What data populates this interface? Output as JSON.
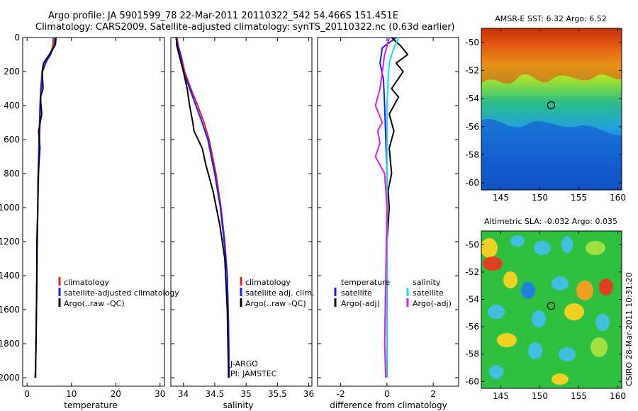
{
  "figure": {
    "title_line1": "Argo profile: JA 5901599_78 22-Mar-2011 20110322_542 54.466S 151.451E",
    "title_line2": "Climatology: CARS2009. Satellite-adjusted climatology: synTS_20110322.nc (0.63d earlier)",
    "side_stamp": "CSIRO 28-Mar-2011 10:31:20"
  },
  "colors": {
    "climatology": "#e32222",
    "satellite": "#1a1aff",
    "argo": "#000000",
    "salinity_satellite": "#19e0e6",
    "salinity_argo": "#e619e6"
  },
  "chart_data": [
    {
      "type": "line",
      "id": "temperature",
      "xlabel": "temperature",
      "ylabel": "",
      "xlim": [
        -1,
        31
      ],
      "ylim": [
        2050,
        0
      ],
      "xticks": [
        0,
        10,
        20,
        30
      ],
      "yticks": [
        0,
        200,
        400,
        600,
        800,
        1000,
        1200,
        1400,
        1600,
        1800,
        2000
      ],
      "legend": [
        "climatology",
        "satellite-adjusted climatology",
        "Argo(..raw -QC)"
      ],
      "series": [
        {
          "name": "climatology",
          "color": "#e32222",
          "x": [
            5.9,
            5.8,
            5.2,
            4.2,
            3.5,
            3.2,
            3.0,
            2.9,
            2.8,
            2.6,
            2.4,
            2.3,
            2.2,
            2.1,
            2.0,
            1.9
          ],
          "y": [
            0,
            50,
            100,
            150,
            200,
            300,
            400,
            500,
            600,
            800,
            1000,
            1200,
            1400,
            1600,
            1800,
            2000
          ]
        },
        {
          "name": "satellite-adjusted climatology",
          "color": "#1a1aff",
          "x": [
            6.3,
            6.1,
            5.3,
            4.1,
            3.4,
            3.1,
            2.9,
            2.8,
            2.7,
            2.5,
            2.4,
            2.3,
            2.2,
            2.1,
            2.0,
            1.9
          ],
          "y": [
            0,
            50,
            100,
            150,
            200,
            300,
            400,
            500,
            600,
            800,
            1000,
            1200,
            1400,
            1600,
            1800,
            2000
          ]
        },
        {
          "name": "Argo(..raw -QC)",
          "color": "#000000",
          "x": [
            6.5,
            6.4,
            5.0,
            3.7,
            3.4,
            3.6,
            3.0,
            3.3,
            2.6,
            2.9,
            2.5,
            2.4,
            2.2,
            2.2,
            2.1,
            2.0,
            1.9,
            1.8
          ],
          "y": [
            0,
            40,
            100,
            150,
            200,
            300,
            350,
            450,
            550,
            650,
            800,
            1000,
            1200,
            1400,
            1600,
            1800,
            1950,
            2000
          ]
        }
      ]
    },
    {
      "type": "line",
      "id": "salinity",
      "xlabel": "salinity",
      "ylabel": "",
      "xlim": [
        33.8,
        36.05
      ],
      "ylim": [
        2050,
        0
      ],
      "xticks": [
        34,
        34.5,
        35,
        35.5,
        36
      ],
      "xticklabels": [
        "34",
        "34.5",
        "35",
        "35.5",
        "36"
      ],
      "legend": [
        "climatology",
        "satellite adj. clim.",
        "Argo(..raw -QC)"
      ],
      "annotation": [
        "J-ARGO",
        "PI: JAMSTEC"
      ],
      "series": [
        {
          "name": "climatology",
          "color": "#e32222",
          "x": [
            33.9,
            33.92,
            33.96,
            34.02,
            34.12,
            34.23,
            34.33,
            34.41,
            34.52,
            34.6,
            34.66,
            34.7,
            34.72,
            34.73
          ],
          "y": [
            0,
            50,
            100,
            200,
            300,
            400,
            500,
            600,
            800,
            1000,
            1200,
            1400,
            1700,
            2000
          ]
        },
        {
          "name": "satellite adj. clim.",
          "color": "#1a1aff",
          "x": [
            33.88,
            33.91,
            33.95,
            34.0,
            34.1,
            34.2,
            34.3,
            34.39,
            34.5,
            34.59,
            34.65,
            34.7,
            34.72,
            34.73
          ],
          "y": [
            0,
            50,
            100,
            200,
            300,
            400,
            500,
            600,
            800,
            1000,
            1200,
            1400,
            1700,
            2000
          ]
        },
        {
          "name": "Argo(..raw -QC)",
          "color": "#000000",
          "x": [
            33.89,
            33.89,
            33.93,
            34.0,
            34.06,
            34.1,
            34.15,
            34.17,
            34.3,
            34.36,
            34.47,
            34.58,
            34.66,
            34.7,
            34.72
          ],
          "y": [
            0,
            40,
            100,
            200,
            300,
            400,
            500,
            550,
            650,
            750,
            900,
            1100,
            1300,
            1600,
            2000
          ]
        }
      ]
    },
    {
      "type": "line",
      "id": "difference",
      "xlabel": "difference from climatology",
      "ylabel": "",
      "xlim": [
        -3.0,
        3.1
      ],
      "ylim": [
        2050,
        0
      ],
      "xticks": [
        -2,
        0,
        2
      ],
      "legend_left_header": "temperature",
      "legend_right_header": "salinity",
      "legend_left": [
        "satellite",
        "Argo(-adj)"
      ],
      "legend_right": [
        "satellite",
        "Argo(-adj)"
      ],
      "series": [
        {
          "name": "temperature satellite",
          "color": "#1a1aff",
          "x": [
            0.4,
            -0.2,
            -0.3,
            -0.15,
            -0.1,
            0.0,
            0.0,
            0.0,
            0.0
          ],
          "y": [
            0,
            60,
            150,
            250,
            400,
            800,
            1200,
            1600,
            2000
          ]
        },
        {
          "name": "temperature Argo(-adj)",
          "color": "#000000",
          "x": [
            0.2,
            0.6,
            0.9,
            0.4,
            0.7,
            0.2,
            0.5,
            0.1,
            0.3,
            0.1,
            0.2,
            0.05,
            0.1,
            0.0,
            0.0,
            0.0
          ],
          "y": [
            0,
            50,
            100,
            150,
            200,
            300,
            350,
            450,
            550,
            650,
            800,
            900,
            1000,
            1200,
            1600,
            2000
          ]
        },
        {
          "name": "salinity satellite",
          "color": "#19e0e6",
          "x": [
            0.5,
            0.3,
            0.1,
            0.05,
            0.0,
            0.0,
            0.0,
            0.0
          ],
          "y": [
            0,
            60,
            150,
            250,
            400,
            800,
            1200,
            2000
          ]
        },
        {
          "name": "salinity Argo(-adj)",
          "color": "#e619e6",
          "x": [
            0.1,
            -0.1,
            -0.3,
            -0.5,
            -0.2,
            -0.4,
            -0.3,
            -0.5,
            -0.1,
            -0.05,
            0.0,
            -0.05,
            -0.1,
            -0.05
          ],
          "y": [
            0,
            100,
            300,
            400,
            500,
            550,
            620,
            700,
            800,
            900,
            1000,
            1400,
            1800,
            2000
          ]
        }
      ]
    },
    {
      "type": "heatmap",
      "id": "sst",
      "title": "AMSR-E SST: 6.32  Argo: 6.52",
      "xlim": [
        142.5,
        160.5
      ],
      "ylim": [
        -60.5,
        -49
      ],
      "xticks": [
        145,
        150,
        155,
        160
      ],
      "yticks": [
        -50,
        -52,
        -54,
        -56,
        -58,
        -60
      ],
      "marker": {
        "lon": 151.45,
        "lat": -54.47
      }
    },
    {
      "type": "heatmap",
      "id": "sla",
      "title": "Altimetric SLA: -0.032  Argo: 0.035",
      "xlim": [
        142.5,
        160.5
      ],
      "ylim": [
        -60.5,
        -49
      ],
      "xticks": [
        145,
        150,
        155,
        160
      ],
      "yticks": [
        -50,
        -52,
        -54,
        -56,
        -58,
        -60
      ],
      "marker": {
        "lon": 151.45,
        "lat": -54.47
      }
    }
  ]
}
